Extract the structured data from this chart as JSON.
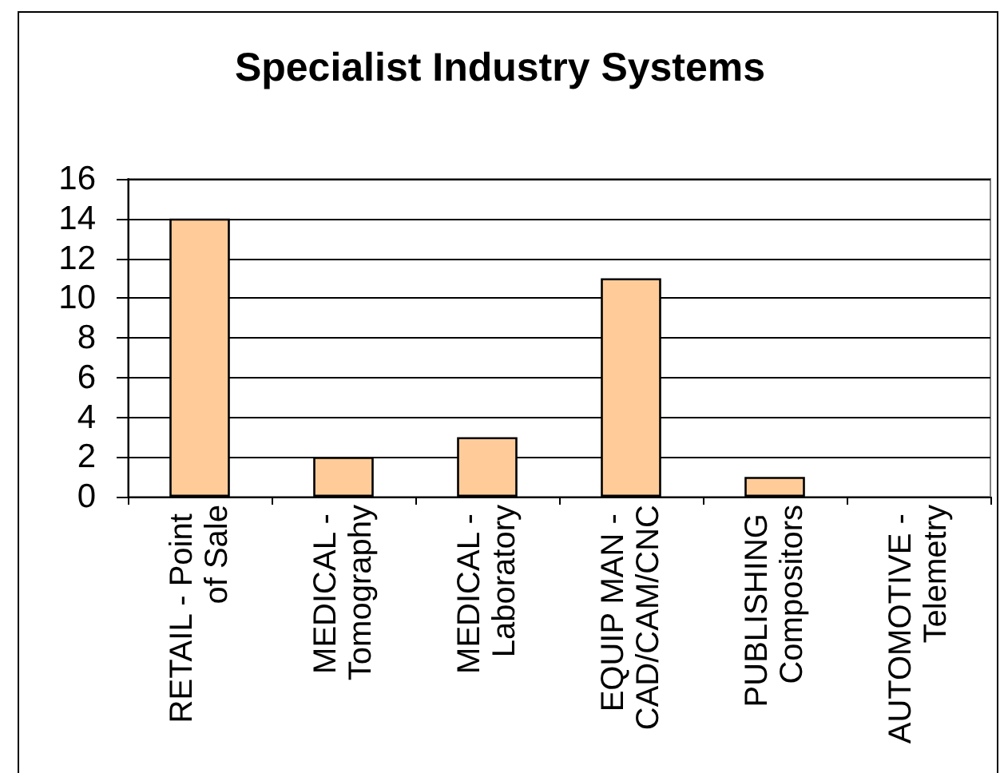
{
  "chart_data": {
    "type": "bar",
    "title": "Specialist Industry Systems",
    "categories": [
      "RETAIL - Point of Sale",
      "MEDICAL - Tomography",
      "MEDICAL - Laboratory",
      "EQUIP MAN - CAD/CAM/CNC",
      "PUBLISHING Compositors",
      "AUTOMOTIVE - Telemetry"
    ],
    "values": [
      14,
      2,
      3,
      11,
      1,
      0
    ],
    "color": "#ffcc99",
    "ylim": [
      0,
      16
    ],
    "yticks": [
      0,
      2,
      4,
      6,
      8,
      10,
      12,
      14,
      16
    ],
    "grid": "y"
  }
}
